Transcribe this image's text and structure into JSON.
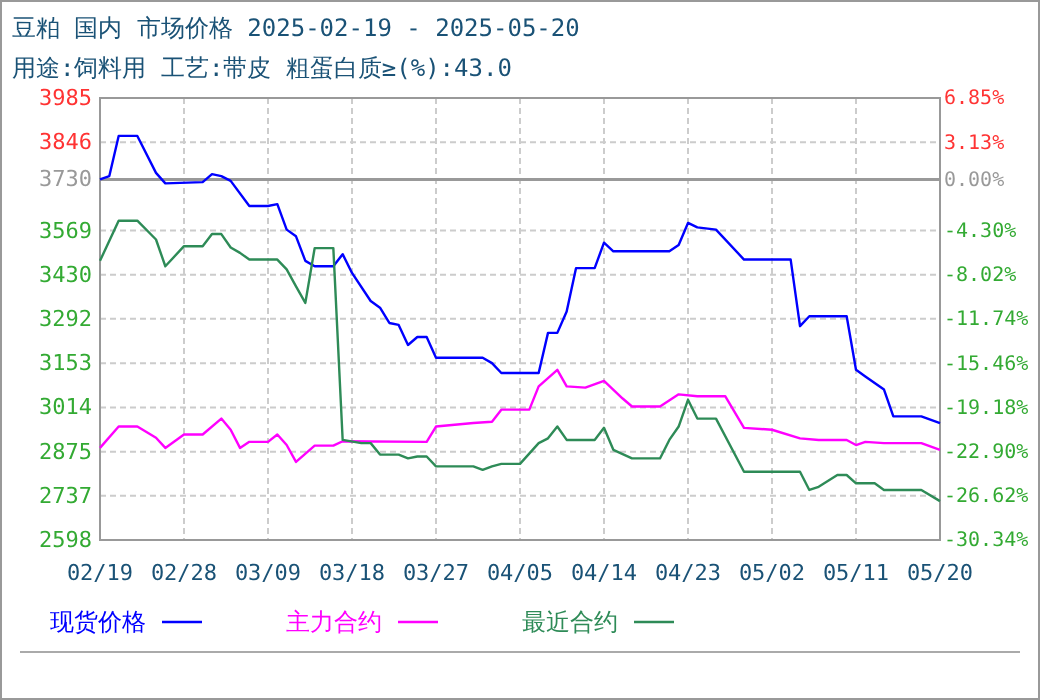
{
  "chart_data": {
    "type": "line",
    "title": "豆粕 国内 市场价格 2025-02-19 - 2025-05-20",
    "subtitle": "用途:饲料用 工艺:带皮 粗蛋白质≥(%):43.0",
    "xlim": [
      "2025-02-19",
      "2025-05-20"
    ],
    "xticks": [
      {
        "value": "2025-02-19",
        "label": "02/19"
      },
      {
        "value": "2025-02-28",
        "label": "02/28"
      },
      {
        "value": "2025-03-09",
        "label": "03/09"
      },
      {
        "value": "2025-03-18",
        "label": "03/18"
      },
      {
        "value": "2025-03-27",
        "label": "03/27"
      },
      {
        "value": "2025-04-05",
        "label": "04/05"
      },
      {
        "value": "2025-04-14",
        "label": "04/14"
      },
      {
        "value": "2025-04-23",
        "label": "04/23"
      },
      {
        "value": "2025-05-02",
        "label": "05/02"
      },
      {
        "value": "2025-05-11",
        "label": "05/11"
      },
      {
        "value": "2025-05-20",
        "label": "05/20"
      }
    ],
    "ylim": [
      2598,
      3985
    ],
    "yticks": [
      2598,
      2737,
      2875,
      3014,
      3153,
      3292,
      3430,
      3569,
      3730,
      3846,
      3985
    ],
    "y2lim": [
      -30.34,
      6.85
    ],
    "y2ticks": [
      {
        "value": -30.34,
        "label": "-30.34%"
      },
      {
        "value": -26.62,
        "label": "-26.62%"
      },
      {
        "value": -22.9,
        "label": "-22.90%"
      },
      {
        "value": -19.18,
        "label": "-19.18%"
      },
      {
        "value": -15.46,
        "label": "-15.46%"
      },
      {
        "value": -11.74,
        "label": "-11.74%"
      },
      {
        "value": -8.02,
        "label": "-8.02%"
      },
      {
        "value": -4.3,
        "label": "-4.30%"
      },
      {
        "value": 0,
        "label": "0.00%"
      },
      {
        "value": 3.13,
        "label": "3.13%"
      },
      {
        "value": 6.85,
        "label": "6.85%"
      }
    ],
    "ref_lines": [
      {
        "axis": "y2",
        "value": 0,
        "color": "#999999"
      }
    ],
    "grid": true,
    "legend": "bottom",
    "marker": "none",
    "line_style": "solid",
    "series": [
      {
        "name": "现货价格",
        "color": "#0000ff",
        "x": [
          "2025-02-19",
          "2025-02-20",
          "2025-02-21",
          "2025-02-23",
          "2025-02-25",
          "2025-02-26",
          "2025-03-02",
          "2025-03-03",
          "2025-03-04",
          "2025-03-05",
          "2025-03-07",
          "2025-03-09",
          "2025-03-10",
          "2025-03-11",
          "2025-03-12",
          "2025-03-13",
          "2025-03-14",
          "2025-03-16",
          "2025-03-17",
          "2025-03-18",
          "2025-03-20",
          "2025-03-21",
          "2025-03-22",
          "2025-03-23",
          "2025-03-24",
          "2025-03-25",
          "2025-03-26",
          "2025-03-27",
          "2025-04-01",
          "2025-04-02",
          "2025-04-03",
          "2025-04-07",
          "2025-04-08",
          "2025-04-09",
          "2025-04-10",
          "2025-04-11",
          "2025-04-13",
          "2025-04-14",
          "2025-04-15",
          "2025-04-21",
          "2025-04-22",
          "2025-04-23",
          "2025-04-24",
          "2025-04-26",
          "2025-04-29",
          "2025-05-04",
          "2025-05-05",
          "2025-05-06",
          "2025-05-10",
          "2025-05-11",
          "2025-05-12",
          "2025-05-14",
          "2025-05-15",
          "2025-05-18",
          "2025-05-20"
        ],
        "values": [
          3730,
          3740,
          3866,
          3866,
          3750,
          3717,
          3721,
          3746,
          3740,
          3725,
          3646,
          3646,
          3652,
          3572,
          3551,
          3474,
          3457,
          3457,
          3495,
          3436,
          3348,
          3327,
          3279,
          3273,
          3210,
          3235,
          3235,
          3170,
          3170,
          3153,
          3122,
          3122,
          3248,
          3248,
          3315,
          3451,
          3451,
          3531,
          3504,
          3504,
          3524,
          3593,
          3579,
          3572,
          3478,
          3478,
          3269,
          3300,
          3300,
          3132,
          3111,
          3070,
          2986,
          2986,
          2965
        ]
      },
      {
        "name": "主力合约",
        "color": "#ff00ff",
        "x": [
          "2025-02-19",
          "2025-02-21",
          "2025-02-23",
          "2025-02-25",
          "2025-02-26",
          "2025-02-28",
          "2025-03-02",
          "2025-03-04",
          "2025-03-05",
          "2025-03-06",
          "2025-03-07",
          "2025-03-09",
          "2025-03-10",
          "2025-03-11",
          "2025-03-12",
          "2025-03-14",
          "2025-03-16",
          "2025-03-17",
          "2025-03-26",
          "2025-03-27",
          "2025-03-31",
          "2025-04-02",
          "2025-04-03",
          "2025-04-06",
          "2025-04-07",
          "2025-04-09",
          "2025-04-10",
          "2025-04-12",
          "2025-04-14",
          "2025-04-16",
          "2025-04-17",
          "2025-04-20",
          "2025-04-22",
          "2025-04-24",
          "2025-04-27",
          "2025-04-29",
          "2025-05-02",
          "2025-05-05",
          "2025-05-07",
          "2025-05-10",
          "2025-05-11",
          "2025-05-12",
          "2025-05-14",
          "2025-05-18",
          "2025-05-20"
        ],
        "values": [
          2887,
          2954,
          2954,
          2919,
          2887,
          2929,
          2929,
          2979,
          2944,
          2887,
          2906,
          2906,
          2929,
          2896,
          2843,
          2894,
          2894,
          2908,
          2906,
          2954,
          2965,
          2969,
          3007,
          3007,
          3080,
          3132,
          3080,
          3076,
          3097,
          3042,
          3017,
          3017,
          3055,
          3049,
          3049,
          2950,
          2944,
          2917,
          2912,
          2912,
          2896,
          2906,
          2902,
          2902,
          2881
        ]
      },
      {
        "name": "最近合约",
        "color": "#2e8b57",
        "x": [
          "2025-02-19",
          "2025-02-21",
          "2025-02-23",
          "2025-02-25",
          "2025-02-26",
          "2025-02-28",
          "2025-03-02",
          "2025-03-03",
          "2025-03-04",
          "2025-03-05",
          "2025-03-06",
          "2025-03-07",
          "2025-03-10",
          "2025-03-11",
          "2025-03-12",
          "2025-03-13",
          "2025-03-14",
          "2025-03-16",
          "2025-03-17",
          "2025-03-19",
          "2025-03-20",
          "2025-03-21",
          "2025-03-23",
          "2025-03-24",
          "2025-03-25",
          "2025-03-26",
          "2025-03-27",
          "2025-03-31",
          "2025-04-01",
          "2025-04-02",
          "2025-04-03",
          "2025-04-05",
          "2025-04-07",
          "2025-04-08",
          "2025-04-09",
          "2025-04-10",
          "2025-04-13",
          "2025-04-14",
          "2025-04-15",
          "2025-04-17",
          "2025-04-20",
          "2025-04-21",
          "2025-04-22",
          "2025-04-23",
          "2025-04-24",
          "2025-04-26",
          "2025-04-29",
          "2025-05-05",
          "2025-05-06",
          "2025-05-07",
          "2025-05-09",
          "2025-05-10",
          "2025-05-11",
          "2025-05-13",
          "2025-05-14",
          "2025-05-18",
          "2025-05-20"
        ],
        "values": [
          3474,
          3600,
          3600,
          3541,
          3457,
          3520,
          3520,
          3558,
          3558,
          3516,
          3499,
          3478,
          3478,
          3447,
          3394,
          3342,
          3514,
          3514,
          2912,
          2902,
          2902,
          2866,
          2866,
          2854,
          2860,
          2860,
          2829,
          2829,
          2818,
          2829,
          2837,
          2837,
          2902,
          2917,
          2954,
          2912,
          2912,
          2950,
          2881,
          2854,
          2854,
          2912,
          2954,
          3038,
          2979,
          2979,
          2812,
          2812,
          2755,
          2765,
          2802,
          2802,
          2776,
          2776,
          2755,
          2755,
          2720
        ]
      }
    ]
  }
}
